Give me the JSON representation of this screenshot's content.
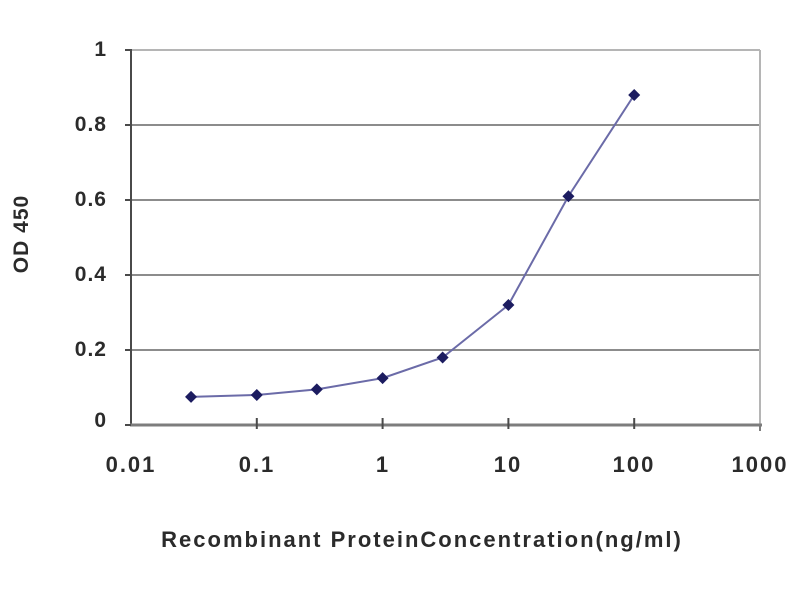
{
  "chart_data": {
    "type": "line",
    "x_scale": "log",
    "x": [
      0.03,
      0.1,
      0.3,
      1,
      3,
      10,
      30,
      100
    ],
    "y": [
      0.075,
      0.08,
      0.095,
      0.125,
      0.18,
      0.32,
      0.61,
      0.88
    ],
    "title": "",
    "xlabel": "Recombinant ProteinConcentration(ng/ml)",
    "ylabel": "OD 450",
    "xlim": [
      0.01,
      1000
    ],
    "ylim": [
      0,
      1
    ],
    "x_tick_labels": [
      "0.01",
      "0.1",
      "1",
      "10",
      "100",
      "1000"
    ],
    "x_tick_values": [
      0.01,
      0.1,
      1,
      10,
      100,
      1000
    ],
    "y_tick_labels": [
      "1",
      "0.8",
      "0.6",
      "0.4",
      "0.2",
      "0"
    ],
    "y_tick_values": [
      1,
      0.8,
      0.6,
      0.4,
      0.2,
      0
    ],
    "grid": "horizontal",
    "legend": "none",
    "marker": "diamond",
    "colors": {
      "line": "#6b6ba8",
      "marker": "#1c1c60",
      "gridline": "#8c8c8c",
      "gridline_top": "#b5b5b5",
      "axis_left": "#4a4a4a",
      "axis_bottom": "#7d7d7d",
      "border_right": "#b5b5b5",
      "text": "#2b2b2b"
    }
  }
}
